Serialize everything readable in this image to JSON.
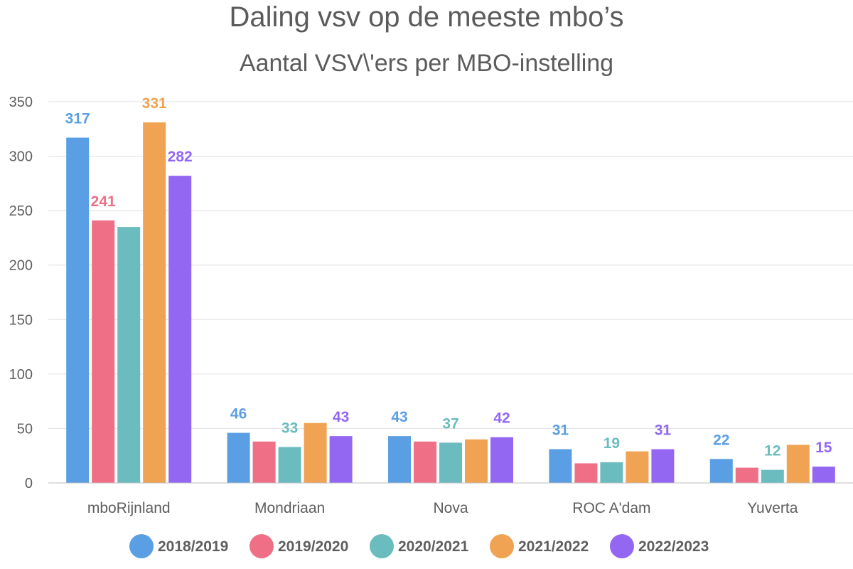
{
  "chart_data": {
    "type": "bar",
    "title": "Daling vsv op de meeste mbo’s",
    "subtitle": "Aantal VSV\\'ers per MBO-instelling",
    "categories": [
      "mboRijnland",
      "Mondriaan",
      "Nova",
      "ROC A'dam",
      "Yuverta"
    ],
    "ylim": [
      0,
      350
    ],
    "yticks": [
      0,
      50,
      100,
      150,
      200,
      250,
      300,
      350
    ],
    "grid": true,
    "legend_position": "bottom",
    "series": [
      {
        "name": "2018/2019",
        "color": "#5a9fe3",
        "values": [
          317,
          46,
          43,
          31,
          22
        ],
        "labels": [
          true,
          true,
          true,
          true,
          true
        ]
      },
      {
        "name": "2019/2020",
        "color": "#ee6f86",
        "values": [
          241,
          38,
          38,
          18,
          14
        ],
        "labels": [
          true,
          false,
          false,
          false,
          false
        ]
      },
      {
        "name": "2020/2021",
        "color": "#6bbcbe",
        "values": [
          235,
          33,
          37,
          19,
          12
        ],
        "labels": [
          false,
          true,
          true,
          true,
          true
        ]
      },
      {
        "name": "2021/2022",
        "color": "#f0a352",
        "values": [
          331,
          55,
          40,
          29,
          35
        ],
        "labels": [
          true,
          false,
          false,
          false,
          false
        ]
      },
      {
        "name": "2022/2023",
        "color": "#9467f2",
        "values": [
          282,
          43,
          42,
          31,
          15
        ],
        "labels": [
          true,
          true,
          true,
          true,
          true
        ]
      }
    ]
  }
}
